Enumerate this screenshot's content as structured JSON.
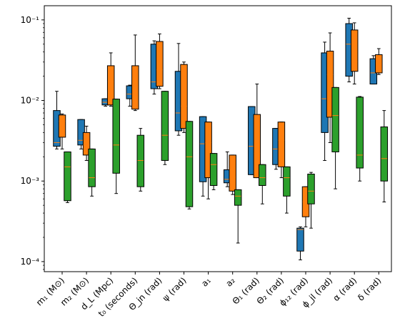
{
  "chart_data": {
    "type": "box",
    "yscale": "log",
    "ylim": [
      7.5e-05,
      0.15
    ],
    "y_ticks": [
      {
        "value": 0.1,
        "label": "10⁻¹"
      },
      {
        "value": 0.01,
        "label": "10⁻²"
      },
      {
        "value": 0.001,
        "label": "10⁻³"
      },
      {
        "value": 0.0001,
        "label": "10⁻⁴"
      }
    ],
    "categories": [
      "m₁ (M⊙)",
      "m₂ (M⊙)",
      "d_L (Mpc)",
      "t₀ (seconds)",
      "Θ_jn (rad)",
      "ψ (rad)",
      "a₁",
      "a₂",
      "Θ₁ (rad)",
      "Θ₂ (rad)",
      "ϕ₁₂ (rad)",
      "ϕ_jl (rad)",
      "α (rad)",
      "δ (rad)"
    ],
    "series": [
      {
        "color": "#1f77b4",
        "boxes": [
          {
            "whislo": 0.0025,
            "q1": 0.0027,
            "med": 0.003,
            "q3": 0.0075,
            "whishi": 0.013
          },
          {
            "whislo": 0.0025,
            "q1": 0.0028,
            "med": 0.0032,
            "q3": 0.0058,
            "whishi": 0.0058
          },
          {
            "whislo": 0.0085,
            "q1": 0.0088,
            "med": 0.0095,
            "q3": 0.0105,
            "whishi": 0.0105
          },
          {
            "whislo": 0.0085,
            "q1": 0.0105,
            "med": 0.012,
            "q3": 0.0152,
            "whishi": 0.0155
          },
          {
            "whislo": 0.012,
            "q1": 0.014,
            "med": 0.017,
            "q3": 0.05,
            "whishi": 0.055
          },
          {
            "whislo": 0.0037,
            "q1": 0.0042,
            "med": 0.007,
            "q3": 0.023,
            "whishi": 0.051
          },
          {
            "whislo": 0.00065,
            "q1": 0.00098,
            "med": 0.0029,
            "q3": 0.0063,
            "whishi": 0.0063
          },
          {
            "whislo": 0.00085,
            "q1": 0.00095,
            "med": 0.00105,
            "q3": 0.00138,
            "whishi": 0.0023
          },
          {
            "whislo": 0.0012,
            "q1": 0.0012,
            "med": 0.0027,
            "q3": 0.0084,
            "whishi": 0.0084
          },
          {
            "whislo": 0.0014,
            "q1": 0.0016,
            "med": 0.0025,
            "q3": 0.0045,
            "whishi": 0.0045
          },
          {
            "whislo": 0.000105,
            "q1": 0.000135,
            "med": 0.00025,
            "q3": 0.00026,
            "whishi": 0.00027
          },
          {
            "whislo": 0.0018,
            "q1": 0.004,
            "med": 0.0105,
            "q3": 0.039,
            "whishi": 0.053
          },
          {
            "whislo": 0.017,
            "q1": 0.02,
            "med": 0.05,
            "q3": 0.09,
            "whishi": 0.105
          },
          {
            "whislo": 0.016,
            "q1": 0.016,
            "med": 0.022,
            "q3": 0.033,
            "whishi": 0.036
          }
        ]
      },
      {
        "color": "#ff7f0e",
        "boxes": [
          {
            "whislo": 0.0025,
            "q1": 0.0035,
            "med": 0.0055,
            "q3": 0.0066,
            "whishi": 0.0068
          },
          {
            "whislo": 0.0018,
            "q1": 0.0021,
            "med": 0.0028,
            "q3": 0.004,
            "whishi": 0.0048
          },
          {
            "whislo": 0.0085,
            "q1": 0.0088,
            "med": 0.017,
            "q3": 0.027,
            "whishi": 0.039
          },
          {
            "whislo": 0.0075,
            "q1": 0.0078,
            "med": 0.015,
            "q3": 0.027,
            "whishi": 0.065
          },
          {
            "whislo": 0.014,
            "q1": 0.015,
            "med": 0.024,
            "q3": 0.054,
            "whishi": 0.067
          },
          {
            "whislo": 0.004,
            "q1": 0.0045,
            "med": 0.0085,
            "q3": 0.028,
            "whishi": 0.03
          },
          {
            "whislo": 0.0006,
            "q1": 0.0011,
            "med": 0.003,
            "q3": 0.0054,
            "whishi": 0.0054
          },
          {
            "whislo": 0.00068,
            "q1": 0.00075,
            "med": 0.00112,
            "q3": 0.0021,
            "whishi": 0.0021
          },
          {
            "whislo": 0.0011,
            "q1": 0.0011,
            "med": 0.0022,
            "q3": 0.0067,
            "whishi": 0.016
          },
          {
            "whislo": 0.0011,
            "q1": 0.0015,
            "med": 0.0032,
            "q3": 0.0054,
            "whishi": 0.0054
          },
          {
            "whislo": 0.00027,
            "q1": 0.00036,
            "med": 0.00055,
            "q3": 0.00085,
            "whishi": 0.00085
          },
          {
            "whislo": 0.003,
            "q1": 0.0062,
            "med": 0.021,
            "q3": 0.041,
            "whishi": 0.069
          },
          {
            "whislo": 0.016,
            "q1": 0.023,
            "med": 0.03,
            "q3": 0.075,
            "whishi": 0.092
          },
          {
            "whislo": 0.021,
            "q1": 0.022,
            "med": 0.029,
            "q3": 0.037,
            "whishi": 0.044
          }
        ]
      },
      {
        "color": "#2ca02c",
        "boxes": [
          {
            "whislo": 0.00054,
            "q1": 0.00057,
            "med": 0.0015,
            "q3": 0.0023,
            "whishi": 0.0023
          },
          {
            "whislo": 0.00065,
            "q1": 0.00085,
            "med": 0.0011,
            "q3": 0.0025,
            "whishi": 0.0025
          },
          {
            "whislo": 0.0007,
            "q1": 0.00125,
            "med": 0.0028,
            "q3": 0.0104,
            "whishi": 0.0104
          },
          {
            "whislo": 0.00075,
            "q1": 0.00085,
            "med": 0.0018,
            "q3": 0.0037,
            "whishi": 0.0045
          },
          {
            "whislo": 0.0016,
            "q1": 0.0018,
            "med": 0.0037,
            "q3": 0.013,
            "whishi": 0.013
          },
          {
            "whislo": 0.00045,
            "q1": 0.00048,
            "med": 0.002,
            "q3": 0.0055,
            "whishi": 0.0055
          },
          {
            "whislo": 0.00078,
            "q1": 0.00088,
            "med": 0.0016,
            "q3": 0.0022,
            "whishi": 0.0022
          },
          {
            "whislo": 0.00017,
            "q1": 0.0005,
            "med": 0.00065,
            "q3": 0.00078,
            "whishi": 0.00078
          },
          {
            "whislo": 0.00052,
            "q1": 0.00088,
            "med": 0.0011,
            "q3": 0.0016,
            "whishi": 0.0016
          },
          {
            "whislo": 0.0004,
            "q1": 0.00065,
            "med": 0.0011,
            "q3": 0.0015,
            "whishi": 0.0015
          },
          {
            "whislo": 0.00026,
            "q1": 0.00052,
            "med": 0.00075,
            "q3": 0.00122,
            "whishi": 0.00128
          },
          {
            "whislo": 0.0008,
            "q1": 0.0023,
            "med": 0.0065,
            "q3": 0.0145,
            "whishi": 0.0145
          },
          {
            "whislo": 0.001,
            "q1": 0.00145,
            "med": 0.0021,
            "q3": 0.011,
            "whishi": 0.0112
          },
          {
            "whislo": 0.00055,
            "q1": 0.001,
            "med": 0.0019,
            "q3": 0.0047,
            "whishi": 0.0075
          }
        ]
      }
    ],
    "median_color": "#ff7f0e",
    "grid": false,
    "legend": null
  }
}
